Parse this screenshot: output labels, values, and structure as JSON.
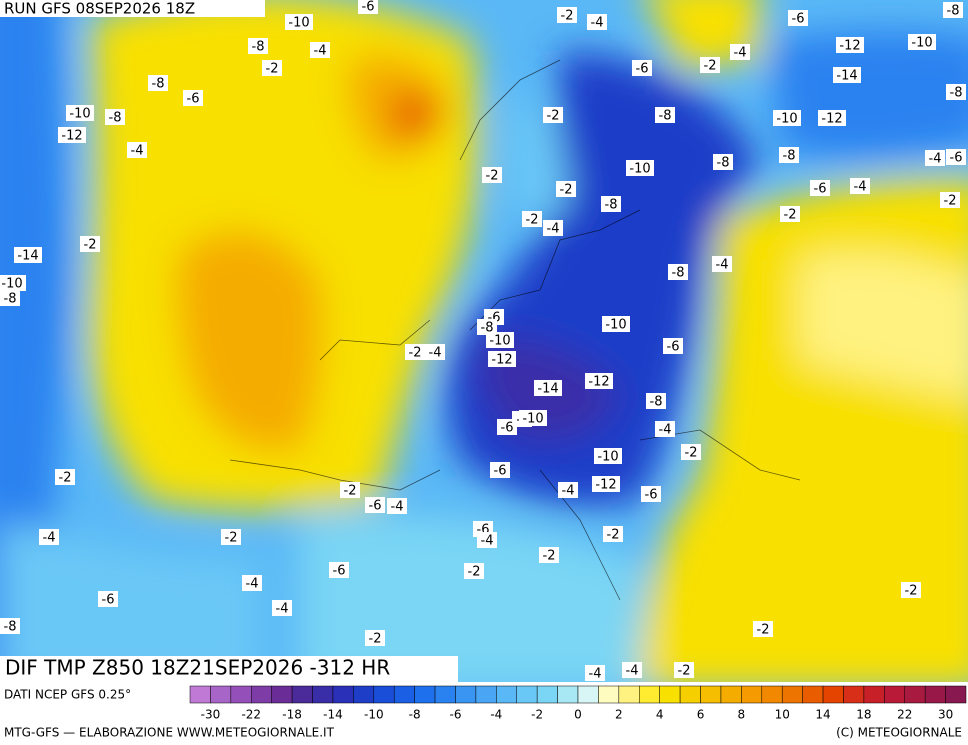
{
  "header": {
    "run": "RUN GFS 08SEP2026 18Z"
  },
  "footer": {
    "title": "DIF TMP Z850 18Z21SEP2026 -312 HR",
    "source": "DATI NCEP GFS 0.25°",
    "credit_left": "MTG-GFS — ELABORAZIONE WWW.METEOGIORNALE.IT",
    "credit_right": "(C) METEOGIORNALE"
  },
  "colorbar": {
    "colors": [
      "#c07ad6",
      "#a865c8",
      "#9450b8",
      "#7d3ca6",
      "#6a2d98",
      "#4b2a9a",
      "#3a2ea8",
      "#2a30b8",
      "#1f3ec8",
      "#1a4ed8",
      "#1a5fe4",
      "#1e70ec",
      "#2a82f0",
      "#3a94f2",
      "#4aa6f4",
      "#5ab8f6",
      "#6ac8f6",
      "#7ad6f4",
      "#a8e8f4",
      "#d8f6f6",
      "#fffcc0",
      "#fff280",
      "#ffec30",
      "#f8e000",
      "#f5cf00",
      "#f5be00",
      "#f5ac00",
      "#f59a00",
      "#f28800",
      "#ee7400",
      "#ea5c00",
      "#e44400",
      "#d83018",
      "#c82028",
      "#b81a38",
      "#a81a40",
      "#981848",
      "#881850"
    ],
    "labels": [
      -30,
      -22,
      -18,
      -14,
      -10,
      -8,
      -6,
      -4,
      -2,
      0,
      2,
      4,
      6,
      8,
      10,
      14,
      18,
      22,
      30
    ]
  },
  "contour_labels": [
    -6,
    -2,
    -4,
    -10,
    -8,
    -4,
    -6,
    -8,
    -4,
    -12,
    -10,
    -2,
    -8,
    -6,
    -6,
    -2,
    -14,
    -8,
    -10,
    -8,
    -12,
    -4,
    -2,
    -8,
    -10,
    -12,
    -8,
    -10,
    -8,
    -4,
    -6,
    -2,
    -2,
    -6,
    -4,
    -2,
    -8,
    -2,
    -2,
    -4,
    -14,
    -2,
    -8,
    -4,
    -10,
    -8,
    -6,
    -8,
    -10,
    -10,
    -6,
    -2,
    -4,
    -12,
    -14,
    -12,
    -8,
    -8,
    -10,
    -6,
    -4,
    -2,
    -10,
    -2,
    -6,
    -4,
    -12,
    -6,
    -2,
    -6,
    -4,
    -6,
    -4,
    -2,
    -4,
    -2,
    -2,
    -6,
    -2,
    -4,
    -2,
    -6,
    -4,
    -8,
    -2,
    -2,
    -4,
    -4,
    -2
  ]
}
